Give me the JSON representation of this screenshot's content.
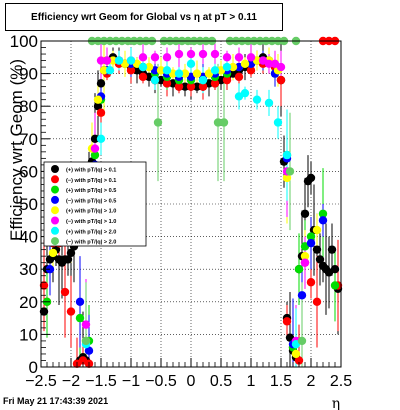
{
  "chart_data": {
    "type": "scatter",
    "title": "Efficiency wrt Geom for Global vs   η at pT > 0.11",
    "xlabel": "η",
    "ylabel": "Efficiency wrt Geom (%)",
    "xlim": [
      -2.5,
      2.5
    ],
    "ylim": [
      0,
      100
    ],
    "xticks": [
      "−2.5",
      "−2",
      "−1.5",
      "−1",
      "−0.5",
      "0",
      "0.5",
      "1",
      "1.5",
      "2",
      "2.5"
    ],
    "yticks": [
      "0",
      "10",
      "20",
      "30",
      "40",
      "50",
      "60",
      "70",
      "80",
      "90",
      "100"
    ],
    "grid": true,
    "legend_position": "center-left",
    "series": [
      {
        "name": "(+) with pT/|q| > 0.1",
        "color": "#000000",
        "x": [
          -2.45,
          -2.4,
          -2.35,
          -2.3,
          -2.25,
          -2.2,
          -2.15,
          -2.1,
          -2.05,
          -2.0,
          -1.95,
          -1.9,
          -1.85,
          -1.8,
          -1.75,
          -1.7,
          -1.65,
          -1.6,
          -1.55,
          -1.5,
          -1.45,
          -1.4,
          -1.3,
          -1.2,
          -1.1,
          -1.0,
          -0.9,
          -0.8,
          -0.7,
          -0.6,
          -0.5,
          -0.4,
          -0.3,
          -0.2,
          -0.1,
          0.0,
          0.1,
          0.2,
          0.3,
          0.4,
          0.5,
          0.6,
          0.7,
          0.8,
          0.9,
          1.0,
          1.1,
          1.2,
          1.3,
          1.4,
          1.5,
          1.55,
          1.6,
          1.65,
          1.7,
          1.75,
          1.8,
          1.85,
          1.9,
          1.95,
          2.0,
          2.05,
          2.1,
          2.15,
          2.2,
          2.25,
          2.3,
          2.35,
          2.4,
          2.45
        ],
        "y": [
          17,
          30,
          33,
          34,
          36,
          33,
          32,
          33,
          33,
          35,
          37,
          46,
          2,
          3,
          2,
          58,
          63,
          70,
          80,
          87,
          91,
          94,
          95,
          94,
          93,
          92,
          91,
          90,
          89,
          88,
          88,
          87,
          87,
          86,
          86,
          86,
          86,
          86,
          87,
          87,
          88,
          89,
          90,
          91,
          92,
          93,
          94,
          95,
          94,
          92,
          88,
          63,
          15,
          9,
          5,
          3,
          30,
          34,
          47,
          57,
          58,
          42,
          36,
          33,
          31,
          30,
          29,
          36,
          30,
          24
        ]
      },
      {
        "name": "(−) with pT/|q| > 0.1",
        "color": "#ff0000",
        "x": [
          -2.45,
          -2.4,
          -2.3,
          -2.2,
          -2.1,
          -2.0,
          -1.9,
          -1.8,
          -1.7,
          -1.6,
          -1.5,
          -1.4,
          -1.2,
          -1.0,
          -0.8,
          -0.6,
          -0.4,
          -0.2,
          0.0,
          0.2,
          0.4,
          0.6,
          0.8,
          1.0,
          1.2,
          1.4,
          1.5,
          1.6,
          1.7,
          1.8,
          1.9,
          2.0,
          2.1,
          2.2,
          2.3,
          2.4,
          2.45
        ],
        "y": [
          25,
          20,
          38,
          38,
          23,
          17,
          1,
          2,
          1,
          60,
          78,
          90,
          93,
          91,
          89,
          88,
          87,
          86,
          86,
          86,
          87,
          88,
          89,
          91,
          93,
          92,
          88,
          14,
          6,
          2,
          32,
          26,
          20,
          100,
          100,
          100,
          25
        ]
      },
      {
        "name": "(+) with pT/|q| > 0.5",
        "color": "#00dd00",
        "x": [
          -2.4,
          -2.2,
          -2.0,
          -1.85,
          -1.7,
          -1.6,
          -1.5,
          -1.4,
          -1.2,
          -1.0,
          -0.8,
          -0.6,
          -0.4,
          -0.2,
          0.0,
          0.2,
          0.4,
          0.6,
          0.8,
          1.0,
          1.2,
          1.4,
          1.6,
          1.7,
          1.8,
          1.9,
          2.0,
          2.2,
          2.4
        ],
        "y": [
          20,
          45,
          39,
          15,
          8,
          65,
          82,
          91,
          94,
          93,
          92,
          90,
          89,
          88,
          88,
          88,
          89,
          90,
          92,
          93,
          94,
          90,
          65,
          6,
          30,
          37,
          40,
          47,
          25
        ]
      },
      {
        "name": "(−) with pT/|q| > 0.5",
        "color": "#0000ff",
        "x": [
          -2.35,
          -2.15,
          -1.85,
          -1.7,
          -1.6,
          -1.5,
          -1.4,
          -1.2,
          -1.0,
          -0.8,
          -0.6,
          -0.4,
          -0.2,
          0.0,
          0.2,
          0.4,
          0.6,
          0.8,
          1.0,
          1.2,
          1.4,
          1.6,
          1.7,
          1.85,
          2.0,
          2.2
        ],
        "y": [
          30,
          42,
          20,
          5,
          62,
          83,
          91,
          94,
          93,
          92,
          91,
          90,
          89,
          89,
          89,
          90,
          91,
          92,
          93,
          94,
          90,
          64,
          7,
          22,
          38,
          45
        ]
      },
      {
        "name": "(+) with pT/|q| > 1.0",
        "color": "#ffff00",
        "x": [
          -2.3,
          -2.0,
          -1.75,
          -1.65,
          -1.55,
          -1.45,
          -1.3,
          -1.1,
          -0.9,
          -0.7,
          -0.5,
          -0.3,
          -0.1,
          0.1,
          0.3,
          0.5,
          0.7,
          0.9,
          1.1,
          1.3,
          1.45,
          1.6,
          1.75,
          1.9,
          2.1
        ],
        "y": [
          35,
          46,
          8,
          67,
          82,
          91,
          94,
          93,
          93,
          92,
          91,
          90,
          90,
          90,
          90,
          91,
          92,
          93,
          94,
          94,
          91,
          58,
          4,
          34,
          42
        ]
      },
      {
        "name": "(−) with pT/|q| > 1.0",
        "color": "#ff00ff",
        "x": [
          -1.75,
          -1.6,
          -1.5,
          -1.4,
          -1.2,
          -1.0,
          -0.8,
          -0.6,
          -0.4,
          -0.2,
          0.0,
          0.2,
          0.4,
          0.6,
          0.8,
          1.0,
          1.2,
          1.3,
          1.4,
          1.5,
          1.6,
          1.75,
          1.9
        ],
        "y": [
          13,
          67,
          94,
          94,
          94,
          94,
          95,
          95,
          95,
          96,
          96,
          96,
          96,
          95,
          95,
          95,
          94,
          93,
          93,
          92,
          60,
          8,
          32
        ]
      },
      {
        "name": "(+) with pT/|q| > 2.0",
        "color": "#00ffff",
        "x": [
          -1.75,
          -1.65,
          -1.5,
          -1.35,
          -1.2,
          -1.0,
          -0.8,
          -0.6,
          -0.4,
          -0.2,
          0.0,
          0.2,
          0.4,
          0.6,
          0.8,
          0.9,
          1.1,
          1.3,
          1.45,
          1.6,
          1.75
        ],
        "y": [
          7,
          60,
          70,
          91,
          94,
          94,
          92,
          88,
          91,
          90,
          93,
          88,
          91,
          92,
          83,
          84,
          82,
          81,
          75,
          65,
          7
        ]
      },
      {
        "name": "(−) with pT/|q| > 2.0",
        "color": "#66cc66",
        "x": [
          -1.75,
          -1.65,
          -1.55,
          -1.45,
          -1.35,
          -1.25,
          -1.15,
          -1.05,
          -0.95,
          -0.85,
          -0.75,
          -0.65,
          -0.55,
          -0.45,
          -0.35,
          -0.25,
          -0.15,
          -0.05,
          0.05,
          0.15,
          0.25,
          0.35,
          0.45,
          0.55,
          0.65,
          0.75,
          0.85,
          0.95,
          1.05,
          1.15,
          1.25,
          1.35,
          1.45,
          1.55,
          1.65,
          1.75,
          1.85
        ],
        "y": [
          8,
          100,
          100,
          100,
          100,
          100,
          100,
          100,
          100,
          100,
          100,
          100,
          75,
          100,
          100,
          100,
          100,
          100,
          100,
          100,
          100,
          100,
          75,
          75,
          100,
          100,
          100,
          100,
          100,
          100,
          100,
          100,
          100,
          100,
          60,
          100,
          8
        ]
      }
    ]
  },
  "footer": {
    "timestamp": "Fri May 21 17:43:39 2021"
  }
}
